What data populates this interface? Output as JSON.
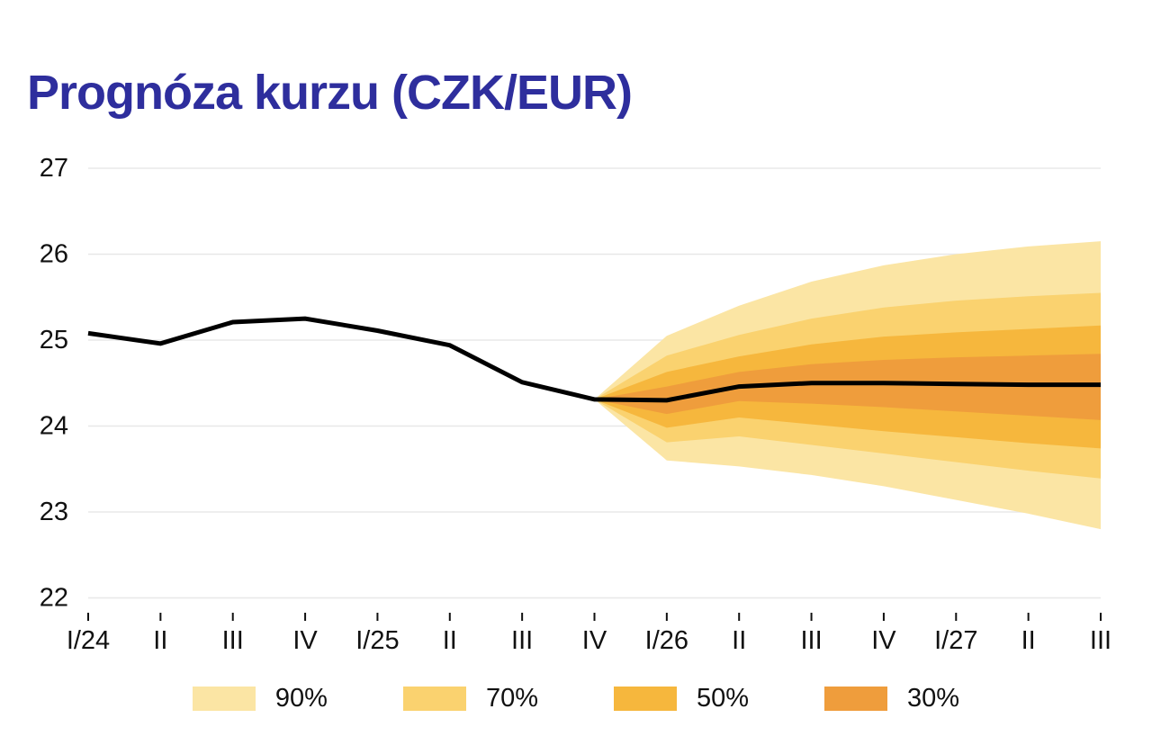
{
  "title": "Prognóza kurzu (CZK/EUR)",
  "colors": {
    "title": "#2E2E9D",
    "axis_text": "#111111",
    "grid": "#E8E8E8",
    "line": "#000000",
    "band_90": "#FBE5A4",
    "band_70": "#FAD26F",
    "band_50": "#F6B73D",
    "band_30": "#EF9D3C"
  },
  "legend": {
    "items": [
      {
        "label": "90%",
        "color": "#FBE5A4"
      },
      {
        "label": "70%",
        "color": "#FAD26F"
      },
      {
        "label": "50%",
        "color": "#F6B73D"
      },
      {
        "label": "30%",
        "color": "#EF9D3C"
      }
    ]
  },
  "chart_data": {
    "type": "area",
    "subtype": "fan-chart-with-line",
    "title": "Prognóza kurzu (CZK/EUR)",
    "xlabel": "",
    "ylabel": "",
    "categories": [
      "I/24",
      "II",
      "III",
      "IV",
      "I/25",
      "II",
      "III",
      "IV",
      "I/26",
      "II",
      "III",
      "IV",
      "I/27",
      "II",
      "III"
    ],
    "yticks": [
      22,
      23,
      24,
      25,
      26,
      27
    ],
    "ylim": [
      22,
      27
    ],
    "grid": "horizontal",
    "legend_position": "bottom",
    "center_line": {
      "name": "CZK/EUR",
      "color": "#000000",
      "values": [
        25.08,
        24.96,
        25.21,
        25.25,
        25.11,
        24.94,
        24.51,
        24.31,
        24.3,
        24.46,
        24.5,
        24.5,
        24.49,
        24.48,
        24.48
      ]
    },
    "forecast_start_index": 7,
    "bands": [
      {
        "label": "90%",
        "color": "#FBE5A4",
        "upper": [
          24.31,
          25.05,
          25.4,
          25.68,
          25.87,
          26.0,
          26.09,
          26.15
        ],
        "lower": [
          24.31,
          23.6,
          23.53,
          23.43,
          23.3,
          23.14,
          22.98,
          22.8
        ]
      },
      {
        "label": "70%",
        "color": "#FAD26F",
        "upper": [
          24.31,
          24.82,
          25.06,
          25.25,
          25.38,
          25.46,
          25.51,
          25.55
        ],
        "lower": [
          24.31,
          23.81,
          23.88,
          23.78,
          23.68,
          23.58,
          23.48,
          23.39
        ]
      },
      {
        "label": "50%",
        "color": "#F6B73D",
        "upper": [
          24.31,
          24.63,
          24.81,
          24.95,
          25.04,
          25.09,
          25.13,
          25.17
        ],
        "lower": [
          24.31,
          23.98,
          24.1,
          24.02,
          23.94,
          23.87,
          23.8,
          23.74
        ]
      },
      {
        "label": "30%",
        "color": "#EF9D3C",
        "upper": [
          24.31,
          24.46,
          24.63,
          24.72,
          24.77,
          24.8,
          24.82,
          24.84
        ],
        "lower": [
          24.31,
          24.14,
          24.29,
          24.26,
          24.22,
          24.17,
          24.12,
          24.07
        ]
      }
    ]
  }
}
